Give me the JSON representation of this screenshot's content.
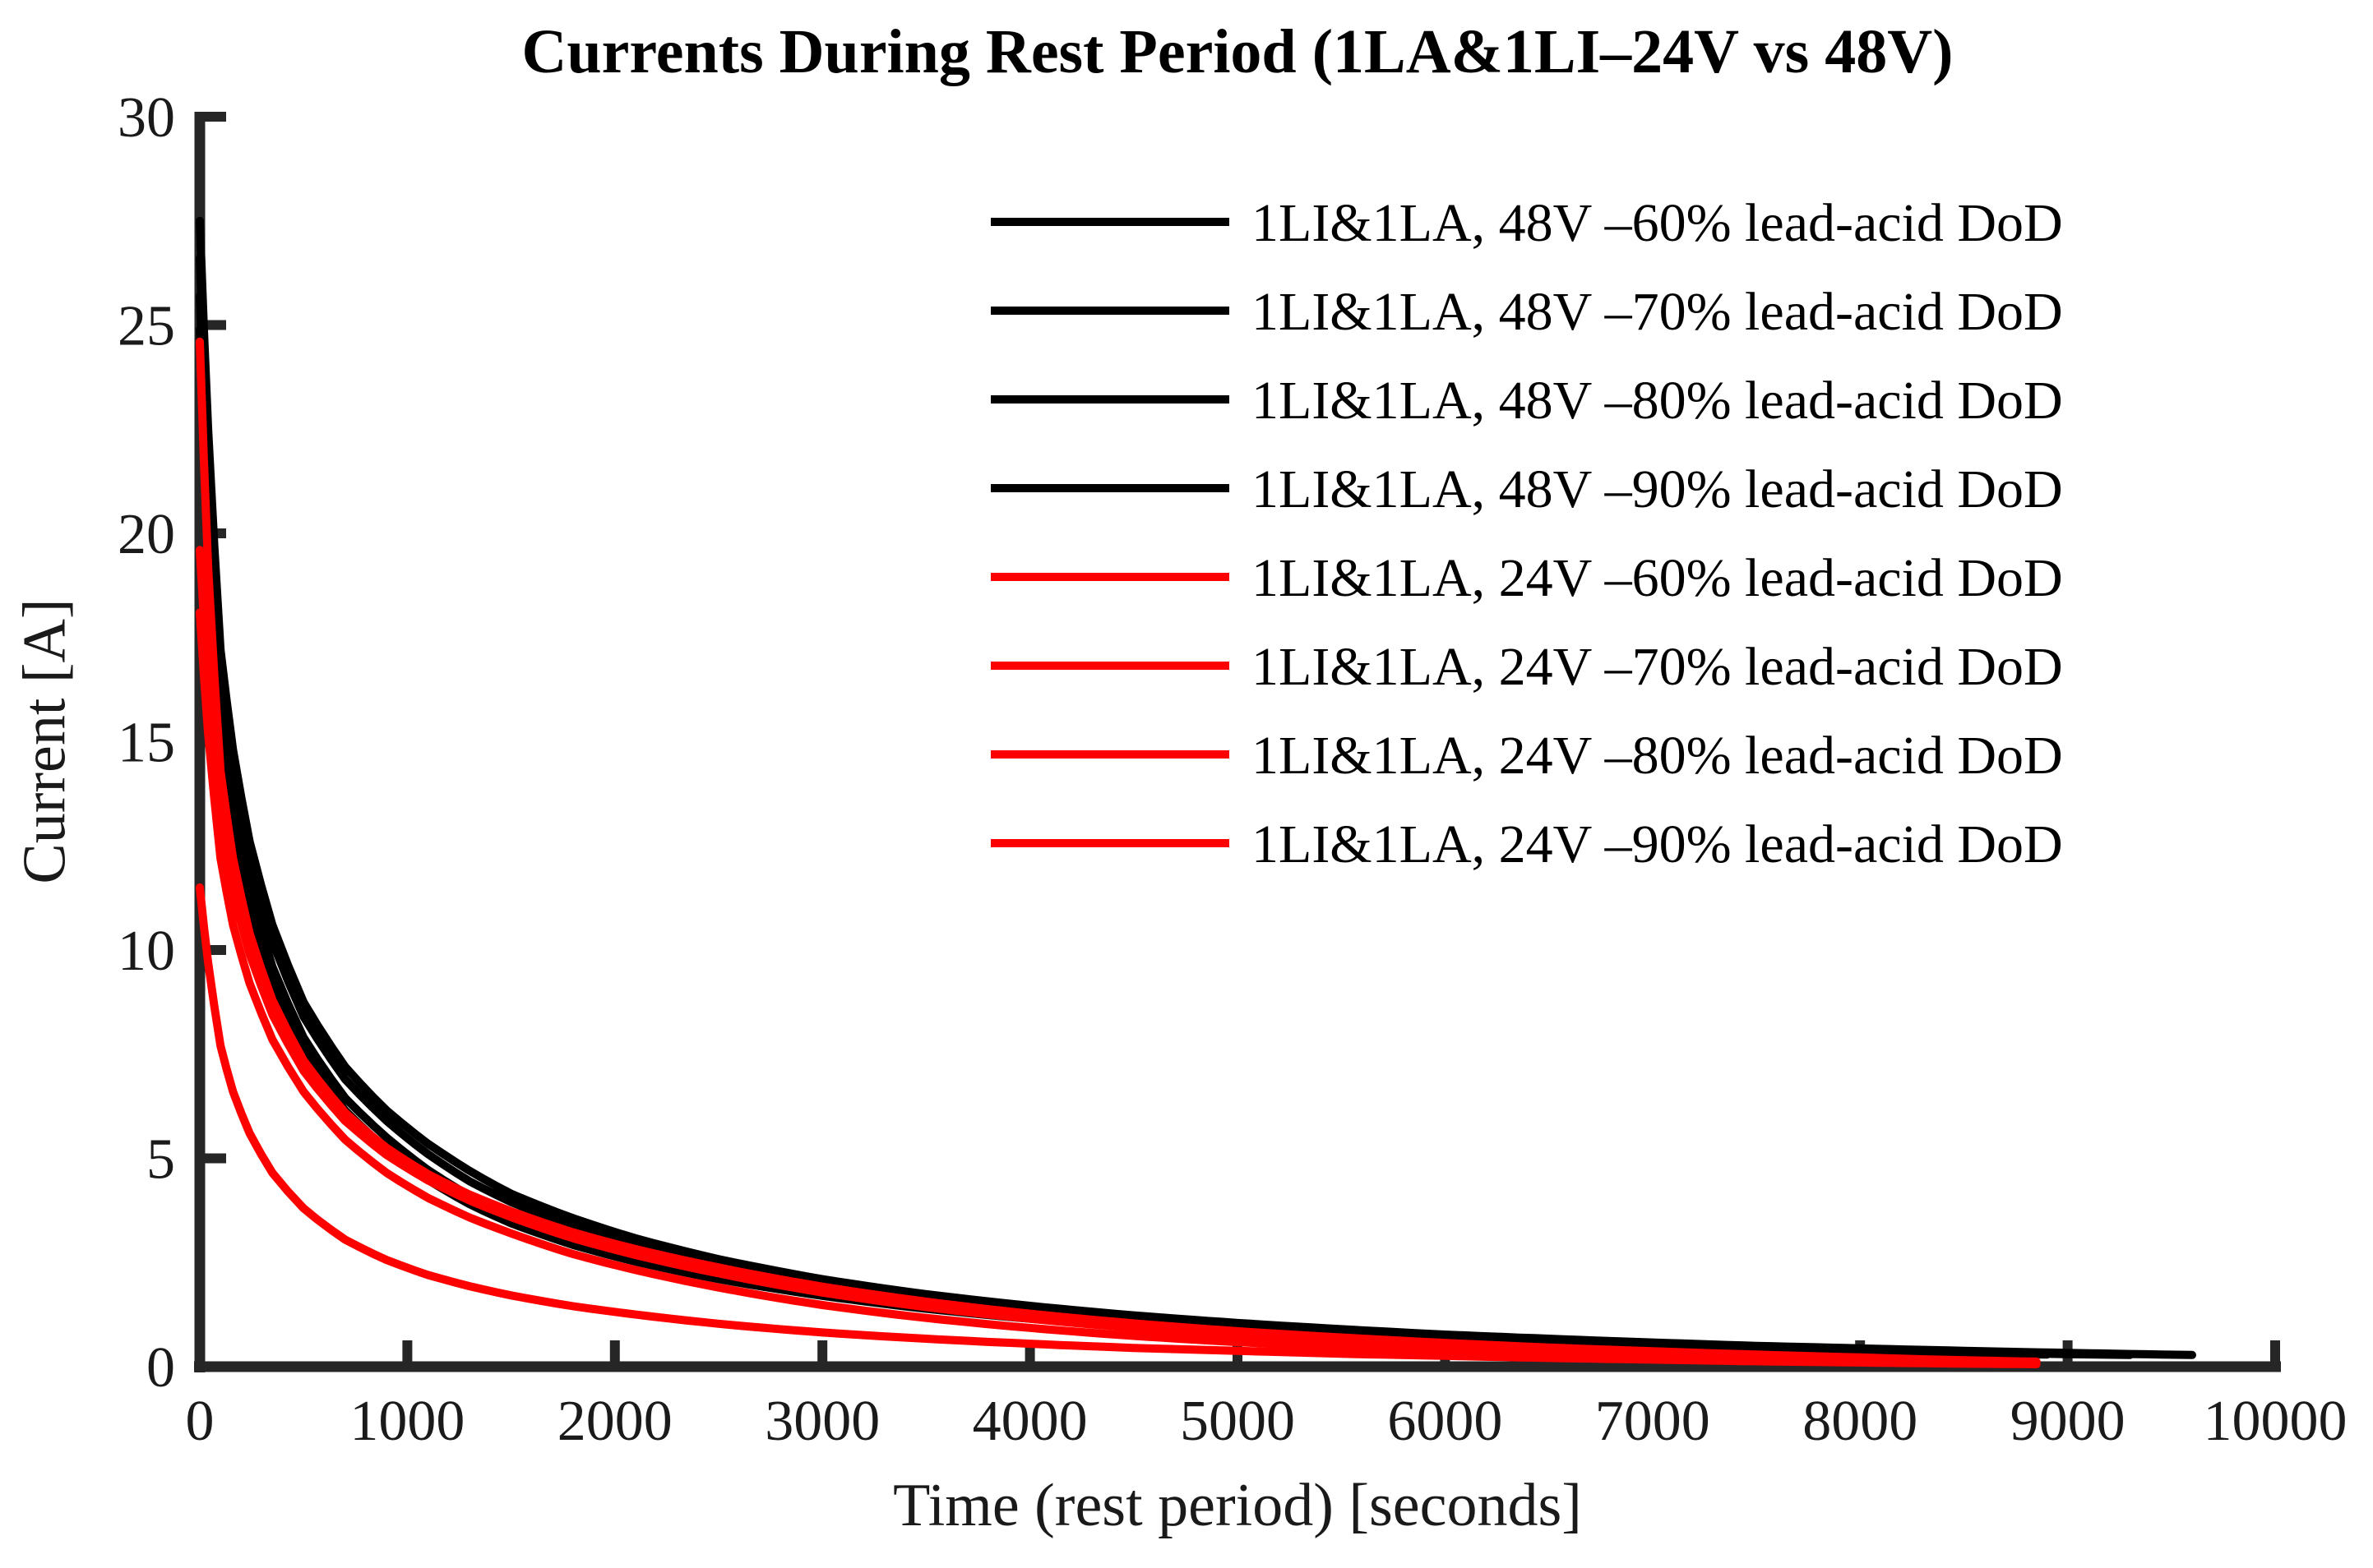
{
  "title": "Currents During Rest Period (1LA&1LI–24V vs 48V)",
  "colors": {
    "black_series": "#000000",
    "red_series": "#ff0000",
    "axis": "#262626",
    "tick_label": "#1a1a1a",
    "background": "#ffffff"
  },
  "chart_data": {
    "type": "line",
    "title": "Currents During Rest Period (1LA&1LI–24V vs 48V)",
    "xlabel": "Time (rest period) [seconds]",
    "ylabel": "Current [A]",
    "xlim": [
      0,
      10000
    ],
    "ylim": [
      0,
      30
    ],
    "xticks": [
      0,
      1000,
      2000,
      3000,
      4000,
      5000,
      6000,
      7000,
      8000,
      9000,
      10000
    ],
    "yticks": [
      0,
      5,
      10,
      15,
      20,
      25,
      30
    ],
    "grid": false,
    "legend_position": "upper right, no box",
    "series": [
      {
        "name": "1LI&1LA, 48V –60% lead-acid DoD",
        "color": "#000000",
        "points": [
          [
            0,
            27.5
          ],
          [
            40,
            22.5
          ],
          [
            100,
            17.2
          ],
          [
            160,
            14.8
          ],
          [
            240,
            12.6
          ],
          [
            350,
            10.6
          ],
          [
            500,
            8.75
          ],
          [
            700,
            7.2
          ],
          [
            900,
            6.15
          ],
          [
            1100,
            5.35
          ],
          [
            1300,
            4.7
          ],
          [
            1500,
            4.15
          ],
          [
            1800,
            3.56
          ],
          [
            2100,
            3.08
          ],
          [
            2500,
            2.58
          ],
          [
            3000,
            2.1
          ],
          [
            3500,
            1.74
          ],
          [
            4000,
            1.46
          ],
          [
            4500,
            1.23
          ],
          [
            5000,
            1.05
          ],
          [
            5500,
            0.9
          ],
          [
            6000,
            0.77
          ],
          [
            6500,
            0.67
          ],
          [
            7000,
            0.58
          ],
          [
            7500,
            0.5
          ],
          [
            8000,
            0.44
          ],
          [
            8500,
            0.38
          ],
          [
            9000,
            0.33
          ],
          [
            9600,
            0.28
          ]
        ]
      },
      {
        "name": "1LI&1LA, 48V –70% lead-acid DoD",
        "color": "#000000",
        "points": [
          [
            0,
            26.6
          ],
          [
            40,
            21.8
          ],
          [
            100,
            16.6
          ],
          [
            160,
            14.2
          ],
          [
            240,
            12.1
          ],
          [
            350,
            10.2
          ],
          [
            500,
            8.4
          ],
          [
            700,
            6.9
          ],
          [
            900,
            5.9
          ],
          [
            1100,
            5.1
          ],
          [
            1300,
            4.45
          ],
          [
            1500,
            3.95
          ],
          [
            1800,
            3.38
          ],
          [
            2100,
            2.92
          ],
          [
            2500,
            2.44
          ],
          [
            3000,
            1.97
          ],
          [
            3500,
            1.62
          ],
          [
            4000,
            1.35
          ],
          [
            4500,
            1.13
          ],
          [
            5000,
            0.96
          ],
          [
            5500,
            0.82
          ],
          [
            6000,
            0.7
          ],
          [
            6500,
            0.6
          ],
          [
            7000,
            0.52
          ],
          [
            7500,
            0.45
          ],
          [
            8000,
            0.39
          ],
          [
            8600,
            0.33
          ],
          [
            9300,
            0.28
          ]
        ]
      },
      {
        "name": "1LI&1LA, 48V –80% lead-acid DoD",
        "color": "#000000",
        "points": [
          [
            0,
            25.7
          ],
          [
            40,
            20.9
          ],
          [
            100,
            15.9
          ],
          [
            160,
            13.5
          ],
          [
            240,
            11.5
          ],
          [
            350,
            9.6
          ],
          [
            500,
            7.9
          ],
          [
            700,
            6.45
          ],
          [
            900,
            5.5
          ],
          [
            1100,
            4.72
          ],
          [
            1300,
            4.1
          ],
          [
            1500,
            3.62
          ],
          [
            1800,
            3.08
          ],
          [
            2100,
            2.66
          ],
          [
            2500,
            2.22
          ],
          [
            3000,
            1.8
          ],
          [
            3500,
            1.48
          ],
          [
            4000,
            1.23
          ],
          [
            4500,
            1.03
          ],
          [
            5000,
            0.87
          ],
          [
            5500,
            0.74
          ],
          [
            6000,
            0.63
          ],
          [
            6500,
            0.54
          ],
          [
            7000,
            0.47
          ],
          [
            7500,
            0.41
          ],
          [
            8000,
            0.36
          ],
          [
            8900,
            0.29
          ]
        ]
      },
      {
        "name": "1LI&1LA, 48V –90% lead-acid DoD",
        "color": "#000000",
        "points": [
          [
            0,
            24.9
          ],
          [
            40,
            20.2
          ],
          [
            100,
            15.3
          ],
          [
            160,
            13.0
          ],
          [
            240,
            11.0
          ],
          [
            350,
            9.2
          ],
          [
            500,
            7.55
          ],
          [
            700,
            6.15
          ],
          [
            900,
            5.22
          ],
          [
            1100,
            4.48
          ],
          [
            1300,
            3.9
          ],
          [
            1500,
            3.44
          ],
          [
            1800,
            2.92
          ],
          [
            2100,
            2.52
          ],
          [
            2500,
            2.1
          ],
          [
            3000,
            1.7
          ],
          [
            3500,
            1.39
          ],
          [
            4000,
            1.15
          ],
          [
            4500,
            0.96
          ],
          [
            5000,
            0.81
          ],
          [
            5500,
            0.69
          ],
          [
            6000,
            0.59
          ],
          [
            6500,
            0.5
          ],
          [
            7000,
            0.43
          ],
          [
            7600,
            0.36
          ]
        ]
      },
      {
        "name": "1LI&1LA, 24V –60% lead-acid DoD",
        "color": "#ff0000",
        "points": [
          [
            0,
            24.6
          ],
          [
            40,
            19.2
          ],
          [
            100,
            14.3
          ],
          [
            160,
            12.2
          ],
          [
            240,
            10.4
          ],
          [
            350,
            8.8
          ],
          [
            500,
            7.35
          ],
          [
            700,
            6.1
          ],
          [
            900,
            5.25
          ],
          [
            1100,
            4.62
          ],
          [
            1300,
            4.13
          ],
          [
            1500,
            3.73
          ],
          [
            1800,
            3.22
          ],
          [
            2100,
            2.82
          ],
          [
            2500,
            2.38
          ],
          [
            3000,
            1.92
          ],
          [
            3500,
            1.56
          ],
          [
            4000,
            1.27
          ],
          [
            4500,
            1.04
          ],
          [
            5000,
            0.85
          ],
          [
            5500,
            0.7
          ],
          [
            6000,
            0.57
          ],
          [
            6500,
            0.46
          ],
          [
            7000,
            0.37
          ],
          [
            7500,
            0.29
          ],
          [
            8000,
            0.22
          ],
          [
            8850,
            0.12
          ]
        ]
      },
      {
        "name": "1LI&1LA, 24V –70% lead-acid DoD",
        "color": "#ff0000",
        "points": [
          [
            0,
            19.6
          ],
          [
            40,
            16.4
          ],
          [
            100,
            13.1
          ],
          [
            160,
            11.4
          ],
          [
            240,
            9.9
          ],
          [
            350,
            8.45
          ],
          [
            500,
            7.1
          ],
          [
            700,
            5.9
          ],
          [
            900,
            5.08
          ],
          [
            1100,
            4.47
          ],
          [
            1300,
            3.99
          ],
          [
            1500,
            3.59
          ],
          [
            1800,
            3.08
          ],
          [
            2100,
            2.68
          ],
          [
            2500,
            2.24
          ],
          [
            3000,
            1.78
          ],
          [
            3500,
            1.43
          ],
          [
            4000,
            1.15
          ],
          [
            4500,
            0.93
          ],
          [
            5000,
            0.75
          ],
          [
            5500,
            0.61
          ],
          [
            6000,
            0.49
          ],
          [
            6500,
            0.39
          ],
          [
            7000,
            0.31
          ],
          [
            7500,
            0.24
          ],
          [
            8000,
            0.18
          ],
          [
            8700,
            0.1
          ]
        ]
      },
      {
        "name": "1LI&1LA, 24V –80% lead-acid DoD",
        "color": "#ff0000",
        "points": [
          [
            0,
            18.1
          ],
          [
            40,
            15.2
          ],
          [
            100,
            12.2
          ],
          [
            160,
            10.6
          ],
          [
            240,
            9.2
          ],
          [
            350,
            7.85
          ],
          [
            500,
            6.6
          ],
          [
            700,
            5.45
          ],
          [
            900,
            4.65
          ],
          [
            1100,
            4.05
          ],
          [
            1300,
            3.58
          ],
          [
            1500,
            3.2
          ],
          [
            1800,
            2.7
          ],
          [
            2100,
            2.32
          ],
          [
            2500,
            1.9
          ],
          [
            3000,
            1.48
          ],
          [
            3500,
            1.17
          ],
          [
            4000,
            0.93
          ],
          [
            4500,
            0.74
          ],
          [
            5000,
            0.59
          ],
          [
            5500,
            0.47
          ],
          [
            6000,
            0.37
          ],
          [
            6500,
            0.29
          ],
          [
            7000,
            0.22
          ],
          [
            7500,
            0.16
          ],
          [
            8000,
            0.12
          ],
          [
            8600,
            0.07
          ]
        ]
      },
      {
        "name": "1LI&1LA, 24V –90% lead-acid DoD",
        "color": "#ff0000",
        "points": [
          [
            0,
            11.5
          ],
          [
            40,
            9.7
          ],
          [
            100,
            7.7
          ],
          [
            160,
            6.6
          ],
          [
            240,
            5.6
          ],
          [
            350,
            4.65
          ],
          [
            500,
            3.8
          ],
          [
            700,
            3.05
          ],
          [
            900,
            2.56
          ],
          [
            1100,
            2.2
          ],
          [
            1300,
            1.93
          ],
          [
            1500,
            1.71
          ],
          [
            1800,
            1.45
          ],
          [
            2100,
            1.25
          ],
          [
            2500,
            1.03
          ],
          [
            3000,
            0.82
          ],
          [
            3500,
            0.67
          ],
          [
            4000,
            0.55
          ],
          [
            4500,
            0.45
          ],
          [
            5000,
            0.38
          ],
          [
            5500,
            0.31
          ],
          [
            6000,
            0.26
          ],
          [
            6500,
            0.21
          ],
          [
            7000,
            0.17
          ],
          [
            7500,
            0.13
          ],
          [
            8000,
            0.1
          ],
          [
            8850,
            0.06
          ]
        ]
      }
    ]
  }
}
